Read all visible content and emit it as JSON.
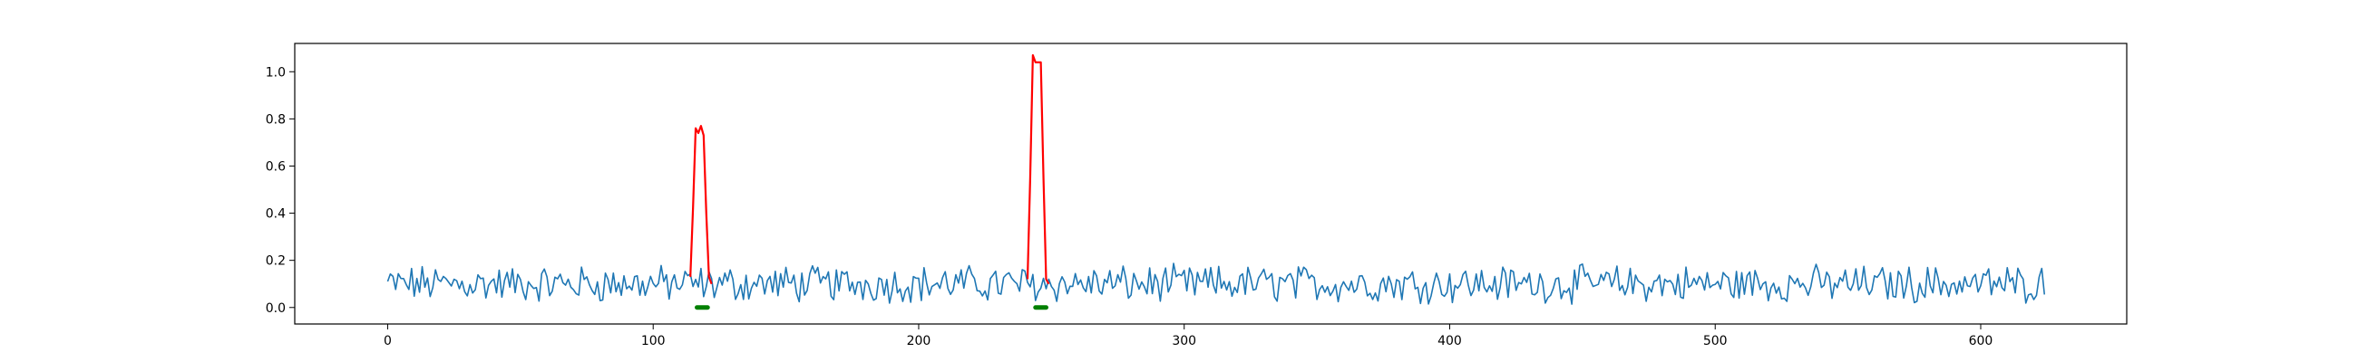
{
  "chart_data": {
    "type": "line",
    "title": "",
    "xlabel": "",
    "ylabel": "",
    "xlim": [
      -35,
      655
    ],
    "ylim": [
      -0.07,
      1.12
    ],
    "grid": false,
    "x_ticks": [
      0,
      100,
      200,
      300,
      400,
      500,
      600
    ],
    "x_tick_labels": [
      "0",
      "100",
      "200",
      "300",
      "400",
      "500",
      "600"
    ],
    "y_ticks": [
      0.0,
      0.2,
      0.4,
      0.6,
      0.8,
      1.0
    ],
    "y_tick_labels": [
      "0.0",
      "0.2",
      "0.4",
      "0.6",
      "0.8",
      "1.0"
    ],
    "series_colors": {
      "signal": "#1f77b4",
      "anomaly": "#ff0000",
      "marker": "#008000"
    },
    "signal": {
      "x_start": 0,
      "x_end": 624,
      "y_min": 0.0,
      "y_max": 0.21,
      "mean": 0.1
    },
    "anomaly_segments": [
      {
        "x": [
          114,
          115,
          116,
          117,
          118,
          119,
          120,
          121,
          122
        ],
        "y": [
          0.13,
          0.42,
          0.76,
          0.74,
          0.77,
          0.73,
          0.4,
          0.13,
          0.1
        ]
      },
      {
        "x": [
          241,
          242,
          243,
          244,
          245,
          246,
          247,
          248,
          249
        ],
        "y": [
          0.12,
          0.55,
          1.07,
          1.04,
          1.04,
          1.04,
          0.55,
          0.12,
          0.1
        ]
      }
    ],
    "markers": [
      {
        "x_start": 116.5,
        "x_end": 120.5,
        "y": 0.0
      },
      {
        "x_start": 244,
        "x_end": 248,
        "y": 0.0
      }
    ]
  }
}
